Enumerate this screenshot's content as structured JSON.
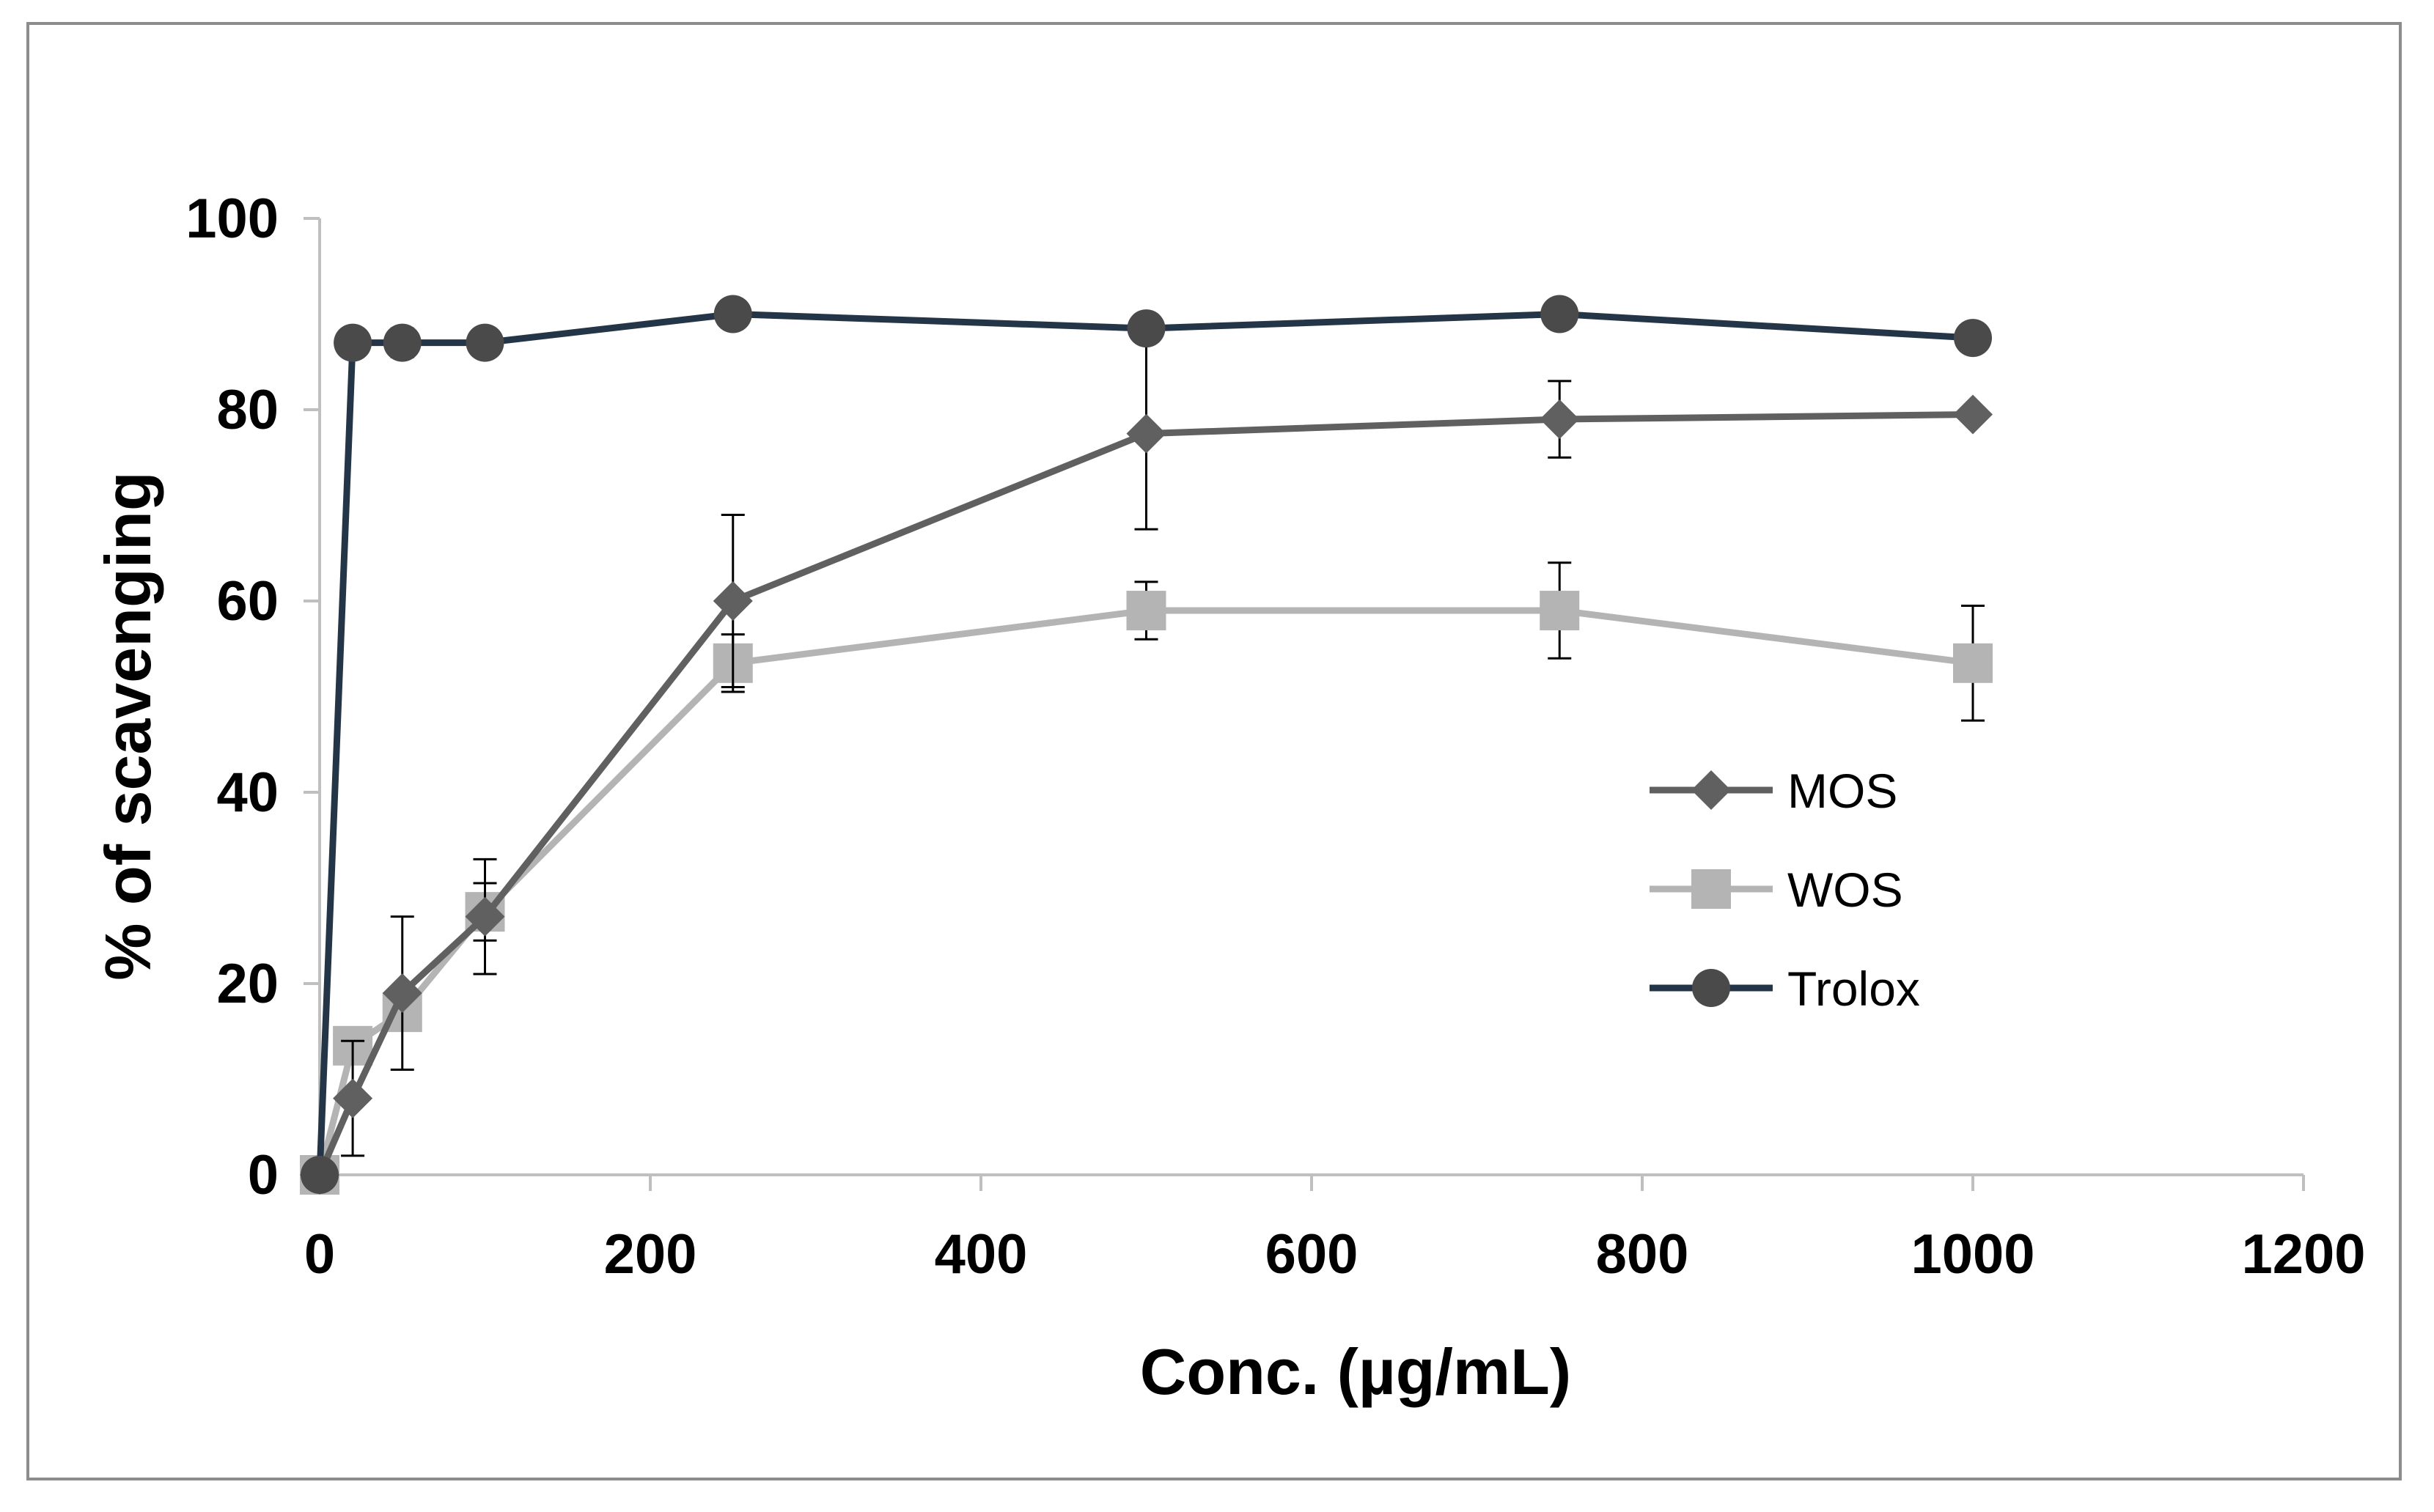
{
  "chart_data": {
    "type": "line",
    "title": "",
    "xlabel": "Conc. (µg/mL)",
    "ylabel": "% of scavenging",
    "xlim": [
      0,
      1200
    ],
    "ylim": [
      0,
      100
    ],
    "x_ticks": [
      0,
      200,
      400,
      600,
      800,
      1000,
      1200
    ],
    "y_ticks": [
      0,
      20,
      40,
      60,
      80,
      100
    ],
    "grid": false,
    "legend_position": "right-middle",
    "series": [
      {
        "name": "MOS",
        "marker": "diamond",
        "color": "#606060",
        "x": [
          0,
          20,
          50,
          100,
          250,
          500,
          750,
          1000
        ],
        "y": [
          0,
          8,
          19,
          27,
          60,
          77.5,
          79,
          79.5
        ],
        "err": [
          0,
          6,
          8,
          6,
          9,
          10,
          4,
          0
        ]
      },
      {
        "name": "WOS",
        "marker": "square",
        "color": "#b4b4b4",
        "x": [
          0,
          20,
          50,
          100,
          250,
          500,
          750,
          1000
        ],
        "y": [
          0,
          13.5,
          17,
          27.5,
          53.5,
          59,
          59,
          53.5
        ],
        "err": [
          0,
          0,
          0,
          3,
          3,
          3,
          5,
          6
        ]
      },
      {
        "name": "Trolox",
        "marker": "circle",
        "color": "#243548",
        "marker_color": "#4a4a4a",
        "x": [
          0,
          20,
          50,
          100,
          250,
          500,
          750,
          1000
        ],
        "y": [
          0,
          87,
          87,
          87,
          90,
          88.5,
          90,
          87.5
        ],
        "err": [
          0,
          0,
          1.5,
          0,
          0,
          0,
          0,
          0
        ]
      }
    ]
  }
}
